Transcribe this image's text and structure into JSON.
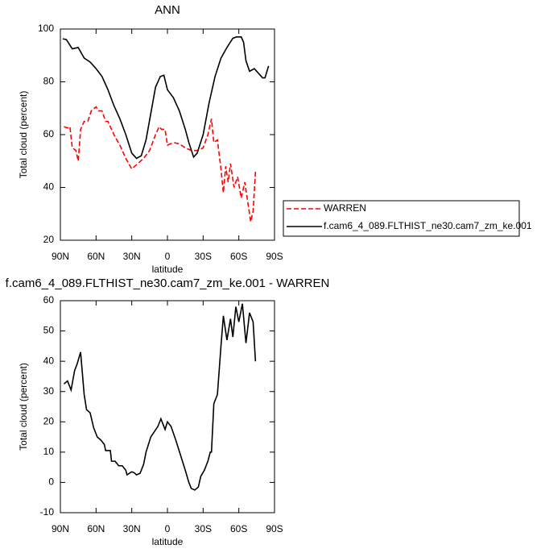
{
  "chart_data": [
    {
      "type": "line",
      "title": "ANN",
      "xlabel": "latitude",
      "ylabel": "Total cloud (percent)",
      "xlim": [
        90,
        -90
      ],
      "ylim": [
        20,
        100
      ],
      "xticks": [
        {
          "value": 90,
          "label": "90N"
        },
        {
          "value": 60,
          "label": "60N"
        },
        {
          "value": 30,
          "label": "30N"
        },
        0,
        {
          "value": -30,
          "label": "30S"
        },
        {
          "value": -60,
          "label": "60S"
        },
        {
          "value": -90,
          "label": "90S"
        }
      ],
      "yticks": [
        20,
        40,
        60,
        80,
        100
      ],
      "legend": "outside-right",
      "series": [
        {
          "name": "WARREN",
          "color": "#ff0000",
          "style": "dashed",
          "x": [
            87,
            84,
            82,
            80,
            77,
            75,
            73,
            70,
            67,
            64,
            60,
            58,
            55,
            52,
            50,
            45,
            40,
            35,
            30,
            25,
            20,
            15,
            10,
            7,
            5,
            2,
            0,
            -5,
            -10,
            -15,
            -20,
            -25,
            -30,
            -34,
            -37,
            -39,
            -42,
            -45,
            -47,
            -49,
            -51,
            -53,
            -56,
            -59,
            -62,
            -65,
            -68,
            -70,
            -72,
            -74
          ],
          "values": [
            63,
            62.5,
            63,
            55,
            54,
            50,
            62,
            65,
            65,
            69,
            70.5,
            69,
            69,
            65,
            65,
            60,
            56,
            51,
            47,
            49,
            51,
            54,
            60,
            63,
            62,
            62,
            56,
            57,
            56.5,
            55,
            54,
            54,
            55,
            60,
            66,
            57,
            58,
            47,
            38,
            48,
            42,
            49,
            40,
            44,
            36,
            42,
            33,
            27,
            31,
            46
          ]
        },
        {
          "name": "f.cam6_4_089.FLTHIST_ne30.cam7_zm_ke.001",
          "color": "#000000",
          "style": "solid",
          "x": [
            88,
            85,
            80,
            75,
            70,
            65,
            60,
            55,
            50,
            45,
            40,
            35,
            30,
            26,
            22,
            18,
            14,
            10,
            6,
            3,
            0,
            -5,
            -10,
            -15,
            -18,
            -22,
            -25,
            -30,
            -35,
            -40,
            -45,
            -50,
            -55,
            -58,
            -62,
            -64,
            -66,
            -69,
            -73,
            -77,
            -80,
            -82,
            -85
          ],
          "values": [
            96.3,
            96,
            92.5,
            93,
            89,
            87.5,
            85,
            82,
            77,
            71,
            66,
            60,
            53,
            51,
            52,
            58,
            68,
            78,
            82,
            82.5,
            77,
            74,
            69,
            62,
            57,
            51.5,
            53,
            60,
            72,
            82,
            89,
            93,
            96.5,
            97,
            97,
            95,
            88,
            84,
            85,
            83,
            81.5,
            81.5,
            86
          ]
        }
      ]
    },
    {
      "type": "line",
      "title": "f.cam6_4_089.FLTHIST_ne30.cam7_zm_ke.001 - WARREN",
      "xlabel": "latitude",
      "ylabel": "Total cloud (percent)",
      "xlim": [
        90,
        -90
      ],
      "ylim": [
        -10,
        60
      ],
      "xticks": [
        {
          "value": 90,
          "label": "90N"
        },
        {
          "value": 60,
          "label": "60N"
        },
        {
          "value": 30,
          "label": "30N"
        },
        0,
        {
          "value": -30,
          "label": "30S"
        },
        {
          "value": -60,
          "label": "60S"
        },
        {
          "value": -90,
          "label": "90S"
        }
      ],
      "yticks": [
        -10,
        0,
        10,
        20,
        30,
        40,
        50,
        60
      ],
      "series": [
        {
          "color": "#000000",
          "style": "solid",
          "x": [
            87,
            84,
            81,
            78,
            76,
            73,
            70,
            68,
            65,
            62,
            59,
            56,
            53,
            52,
            48,
            47,
            44,
            41,
            38,
            35,
            34,
            30,
            28,
            26,
            23,
            20,
            18,
            14,
            8,
            5.5,
            2,
            0,
            -3,
            -7,
            -11,
            -15,
            -18,
            -20,
            -23,
            -26,
            -28,
            -31,
            -34,
            -36,
            -37,
            -39,
            -42,
            -45,
            -47,
            -50,
            -53,
            -55,
            -57.5,
            -60,
            -63,
            -66,
            -69,
            -72,
            -74
          ],
          "values": [
            32.5,
            33.5,
            30.5,
            37,
            39,
            43,
            29,
            24,
            23,
            18,
            15,
            14,
            12.5,
            10.5,
            10.5,
            7,
            7,
            5.5,
            5.5,
            4,
            2.5,
            3.5,
            3.2,
            2.5,
            3,
            6,
            10,
            15,
            18.5,
            21,
            17.5,
            20,
            18.5,
            14,
            9,
            4,
            0,
            -2,
            -2.5,
            -1.5,
            2,
            4,
            7,
            10,
            10,
            26,
            29,
            45,
            55,
            47,
            54,
            48,
            58,
            53,
            59,
            46,
            56,
            53,
            40
          ]
        }
      ]
    }
  ]
}
